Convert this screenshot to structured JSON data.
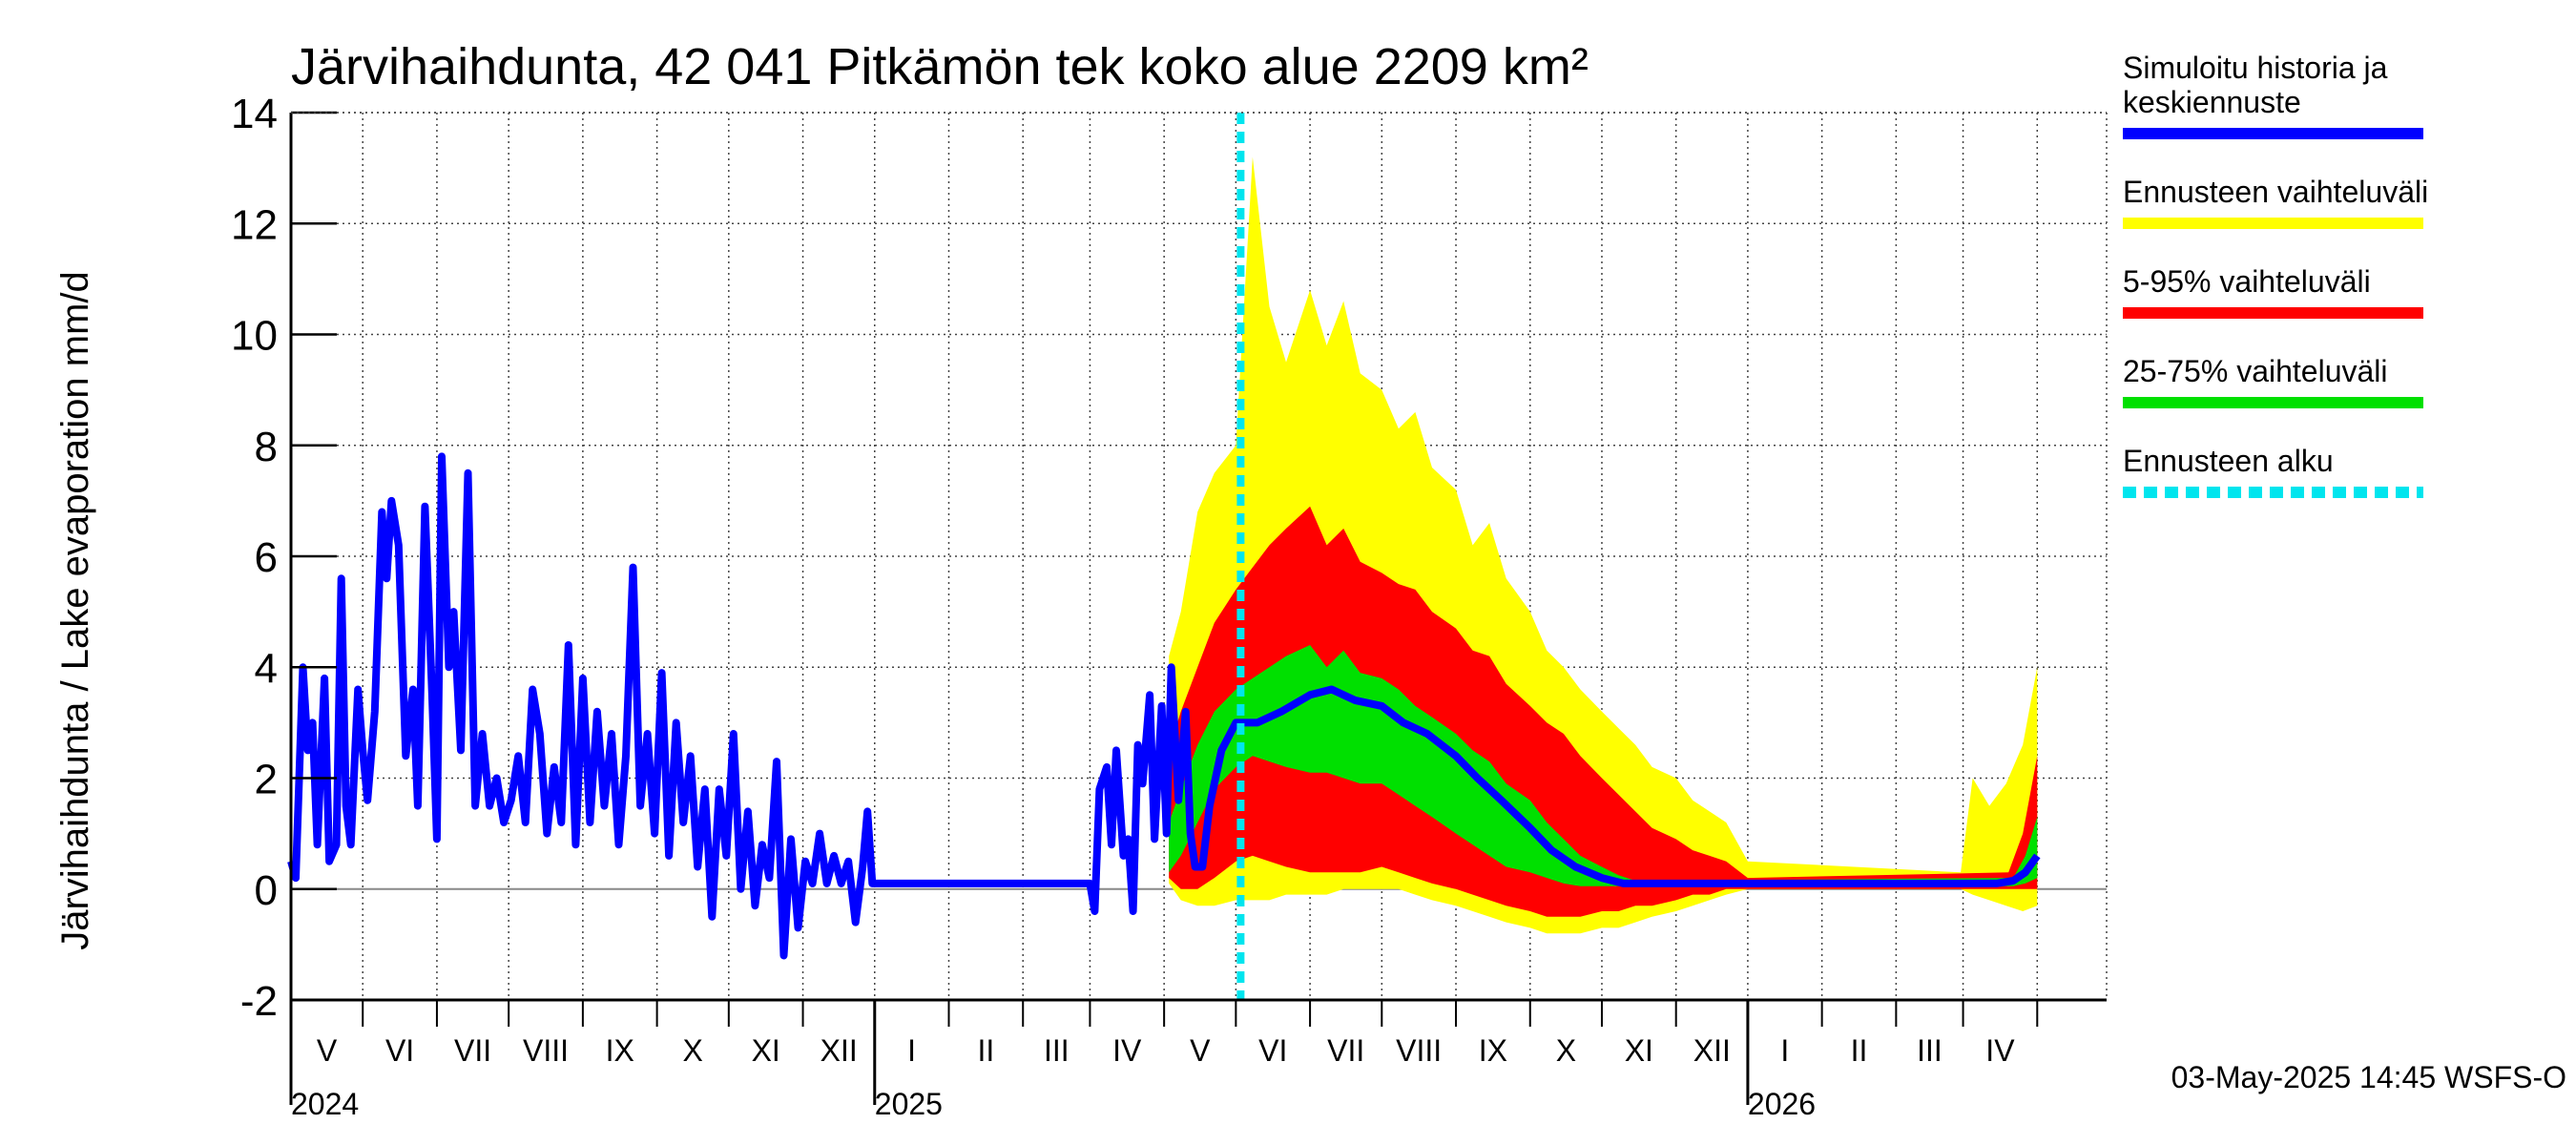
{
  "chart_data": {
    "type": "area",
    "title": "Järvihaihdunta, 42 041 Pitkämön tek koko alue 2209 km²",
    "ylabel": "Järvihaihdunta / Lake evaporation   mm/d",
    "xlabel": "",
    "ylim": [
      -2,
      14
    ],
    "yticks": [
      -2,
      0,
      2,
      4,
      6,
      8,
      10,
      12,
      14
    ],
    "grid": true,
    "legend_position": "right",
    "x_start": "2024-04-01",
    "x_end": "2026-04-30",
    "forecast_start": "2025-05-03",
    "month_ticks": [
      {
        "date": "2024-04-01",
        "label": "V"
      },
      {
        "date": "2024-05-01",
        "label": "VI"
      },
      {
        "date": "2024-06-01",
        "label": "VII"
      },
      {
        "date": "2024-07-01",
        "label": "VIII"
      },
      {
        "date": "2024-08-01",
        "label": "IX"
      },
      {
        "date": "2024-09-01",
        "label": "X"
      },
      {
        "date": "2024-10-01",
        "label": "XI"
      },
      {
        "date": "2024-11-01",
        "label": "XII"
      },
      {
        "date": "2024-12-01",
        "label": "I"
      },
      {
        "date": "2025-01-01",
        "label": "II"
      },
      {
        "date": "2025-02-01",
        "label": "III"
      },
      {
        "date": "2025-03-01",
        "label": "IV"
      },
      {
        "date": "2025-04-01",
        "label": "V"
      },
      {
        "date": "2025-05-01",
        "label": "VI"
      },
      {
        "date": "2025-06-01",
        "label": "VII"
      },
      {
        "date": "2025-07-01",
        "label": "VIII"
      },
      {
        "date": "2025-08-01",
        "label": "IX"
      },
      {
        "date": "2025-09-01",
        "label": "X"
      },
      {
        "date": "2025-10-01",
        "label": "XI"
      },
      {
        "date": "2025-11-01",
        "label": "XII"
      },
      {
        "date": "2025-12-01",
        "label": "I"
      },
      {
        "date": "2026-01-01",
        "label": "II"
      },
      {
        "date": "2026-02-01",
        "label": "III"
      },
      {
        "date": "2026-03-01",
        "label": "IV"
      },
      {
        "date": "2026-04-01",
        "label": ""
      }
    ],
    "year_labels": [
      {
        "date": "2024-04-01",
        "label": "2024"
      },
      {
        "date": "2024-12-01",
        "label": "2025"
      },
      {
        "date": "2025-12-01",
        "label": "2026"
      }
    ],
    "year_boundaries": [
      "2024-12-01",
      "2025-12-01"
    ],
    "legend": [
      {
        "label_lines": [
          "Simuloitu historia ja",
          "keskiennuste"
        ],
        "color": "#0000ff",
        "style": "solid"
      },
      {
        "label_lines": [
          "Ennusteen vaihteluväli"
        ],
        "color": "#ffff00",
        "style": "solid"
      },
      {
        "label_lines": [
          "5-95% vaihteluväli"
        ],
        "color": "#ff0000",
        "style": "solid"
      },
      {
        "label_lines": [
          "25-75% vaihteluväli"
        ],
        "color": "#00e000",
        "style": "solid"
      },
      {
        "label_lines": [
          "Ennusteen alku"
        ],
        "color": "#00e5ee",
        "style": "dashed"
      }
    ],
    "series": [
      {
        "name": "Simuloitu historia ja keskiennuste",
        "color": "#0000ff",
        "points": [
          [
            "2024-04-01",
            0.5
          ],
          [
            "2024-04-03",
            0.2
          ],
          [
            "2024-04-06",
            4.0
          ],
          [
            "2024-04-08",
            2.5
          ],
          [
            "2024-04-10",
            3.0
          ],
          [
            "2024-04-12",
            0.8
          ],
          [
            "2024-04-15",
            3.8
          ],
          [
            "2024-04-17",
            0.5
          ],
          [
            "2024-04-20",
            0.8
          ],
          [
            "2024-04-22",
            5.6
          ],
          [
            "2024-04-24",
            1.5
          ],
          [
            "2024-04-26",
            0.8
          ],
          [
            "2024-04-29",
            3.6
          ],
          [
            "2024-05-01",
            2.5
          ],
          [
            "2024-05-03",
            1.6
          ],
          [
            "2024-05-06",
            3.2
          ],
          [
            "2024-05-09",
            6.8
          ],
          [
            "2024-05-11",
            5.6
          ],
          [
            "2024-05-13",
            7.0
          ],
          [
            "2024-05-16",
            6.2
          ],
          [
            "2024-05-19",
            2.4
          ],
          [
            "2024-05-22",
            3.6
          ],
          [
            "2024-05-24",
            1.5
          ],
          [
            "2024-05-27",
            6.9
          ],
          [
            "2024-05-30",
            3.5
          ],
          [
            "2024-06-01",
            0.9
          ],
          [
            "2024-06-03",
            7.8
          ],
          [
            "2024-06-06",
            4.0
          ],
          [
            "2024-06-08",
            5.0
          ],
          [
            "2024-06-11",
            2.5
          ],
          [
            "2024-06-14",
            7.5
          ],
          [
            "2024-06-17",
            1.5
          ],
          [
            "2024-06-20",
            2.8
          ],
          [
            "2024-06-23",
            1.5
          ],
          [
            "2024-06-26",
            2.0
          ],
          [
            "2024-06-29",
            1.2
          ],
          [
            "2024-07-02",
            1.6
          ],
          [
            "2024-07-05",
            2.4
          ],
          [
            "2024-07-08",
            1.2
          ],
          [
            "2024-07-11",
            3.6
          ],
          [
            "2024-07-14",
            2.8
          ],
          [
            "2024-07-17",
            1.0
          ],
          [
            "2024-07-20",
            2.2
          ],
          [
            "2024-07-23",
            1.2
          ],
          [
            "2024-07-26",
            4.4
          ],
          [
            "2024-07-29",
            0.8
          ],
          [
            "2024-08-01",
            3.8
          ],
          [
            "2024-08-04",
            1.2
          ],
          [
            "2024-08-07",
            3.2
          ],
          [
            "2024-08-10",
            1.5
          ],
          [
            "2024-08-13",
            2.8
          ],
          [
            "2024-08-16",
            0.8
          ],
          [
            "2024-08-19",
            2.4
          ],
          [
            "2024-08-22",
            5.8
          ],
          [
            "2024-08-25",
            1.5
          ],
          [
            "2024-08-28",
            2.8
          ],
          [
            "2024-08-31",
            1.0
          ],
          [
            "2024-09-03",
            3.9
          ],
          [
            "2024-09-06",
            0.6
          ],
          [
            "2024-09-09",
            3.0
          ],
          [
            "2024-09-12",
            1.2
          ],
          [
            "2024-09-15",
            2.4
          ],
          [
            "2024-09-18",
            0.4
          ],
          [
            "2024-09-21",
            1.8
          ],
          [
            "2024-09-24",
            -0.5
          ],
          [
            "2024-09-27",
            1.8
          ],
          [
            "2024-09-30",
            0.6
          ],
          [
            "2024-10-03",
            2.8
          ],
          [
            "2024-10-06",
            0.0
          ],
          [
            "2024-10-09",
            1.4
          ],
          [
            "2024-10-12",
            -0.3
          ],
          [
            "2024-10-15",
            0.8
          ],
          [
            "2024-10-18",
            0.2
          ],
          [
            "2024-10-21",
            2.3
          ],
          [
            "2024-10-24",
            -1.2
          ],
          [
            "2024-10-27",
            0.9
          ],
          [
            "2024-10-30",
            -0.7
          ],
          [
            "2024-11-02",
            0.5
          ],
          [
            "2024-11-05",
            0.1
          ],
          [
            "2024-11-08",
            1.0
          ],
          [
            "2024-11-11",
            0.1
          ],
          [
            "2024-11-14",
            0.6
          ],
          [
            "2024-11-17",
            0.1
          ],
          [
            "2024-11-20",
            0.5
          ],
          [
            "2024-11-23",
            -0.6
          ],
          [
            "2024-11-26",
            0.4
          ],
          [
            "2024-11-28",
            1.4
          ],
          [
            "2024-11-30",
            0.1
          ],
          [
            "2025-03-01",
            0.1
          ],
          [
            "2025-03-03",
            -0.4
          ],
          [
            "2025-03-05",
            1.8
          ],
          [
            "2025-03-08",
            2.2
          ],
          [
            "2025-03-10",
            0.8
          ],
          [
            "2025-03-12",
            2.5
          ],
          [
            "2025-03-15",
            0.6
          ],
          [
            "2025-03-17",
            0.9
          ],
          [
            "2025-03-19",
            -0.4
          ],
          [
            "2025-03-21",
            2.6
          ],
          [
            "2025-03-23",
            1.9
          ],
          [
            "2025-03-26",
            3.5
          ],
          [
            "2025-03-28",
            0.9
          ],
          [
            "2025-03-31",
            3.3
          ],
          [
            "2025-04-02",
            1.0
          ],
          [
            "2025-04-04",
            4.0
          ],
          [
            "2025-04-07",
            1.6
          ],
          [
            "2025-04-10",
            3.2
          ],
          [
            "2025-04-12",
            1.0
          ],
          [
            "2025-04-14",
            0.4
          ],
          [
            "2025-04-17",
            0.4
          ],
          [
            "2025-04-20",
            1.5
          ],
          [
            "2025-04-25",
            2.5
          ],
          [
            "2025-05-01",
            3.0
          ],
          [
            "2025-05-10",
            3.0
          ],
          [
            "2025-05-20",
            3.2
          ],
          [
            "2025-06-01",
            3.5
          ],
          [
            "2025-06-10",
            3.6
          ],
          [
            "2025-06-20",
            3.4
          ],
          [
            "2025-07-01",
            3.3
          ],
          [
            "2025-07-10",
            3.0
          ],
          [
            "2025-07-20",
            2.8
          ],
          [
            "2025-08-01",
            2.4
          ],
          [
            "2025-08-10",
            2.0
          ],
          [
            "2025-08-20",
            1.6
          ],
          [
            "2025-09-01",
            1.1
          ],
          [
            "2025-09-10",
            0.7
          ],
          [
            "2025-09-20",
            0.4
          ],
          [
            "2025-10-01",
            0.2
          ],
          [
            "2025-10-10",
            0.1
          ],
          [
            "2026-03-15",
            0.1
          ],
          [
            "2026-03-22",
            0.15
          ],
          [
            "2026-03-27",
            0.3
          ],
          [
            "2026-04-01",
            0.6
          ]
        ]
      }
    ],
    "bands": [
      {
        "name": "Ennusteen vaihteluväli",
        "color": "#ffff00",
        "x": [
          "2025-04-03",
          "2025-04-08",
          "2025-04-15",
          "2025-04-22",
          "2025-05-01",
          "2025-05-08",
          "2025-05-15",
          "2025-05-22",
          "2025-06-01",
          "2025-06-08",
          "2025-06-15",
          "2025-06-22",
          "2025-07-01",
          "2025-07-08",
          "2025-07-15",
          "2025-07-22",
          "2025-08-01",
          "2025-08-08",
          "2025-08-15",
          "2025-08-22",
          "2025-09-01",
          "2025-09-08",
          "2025-09-15",
          "2025-09-22",
          "2025-10-01",
          "2025-10-08",
          "2025-10-15",
          "2025-10-22",
          "2025-11-01",
          "2025-11-08",
          "2025-11-15",
          "2025-11-22",
          "2025-12-01",
          "2026-02-28",
          "2026-03-05",
          "2026-03-12",
          "2026-03-19",
          "2026-03-26",
          "2026-04-01"
        ],
        "upper": [
          4.2,
          5.0,
          6.8,
          7.5,
          8.0,
          13.2,
          10.5,
          9.5,
          10.8,
          9.8,
          10.6,
          9.3,
          9.0,
          8.3,
          8.6,
          7.6,
          7.2,
          6.2,
          6.6,
          5.6,
          5.0,
          4.3,
          4.0,
          3.6,
          3.2,
          2.9,
          2.6,
          2.2,
          2.0,
          1.6,
          1.4,
          1.2,
          0.5,
          0.3,
          2.0,
          1.5,
          1.9,
          2.6,
          4.0
        ],
        "lower": [
          0.1,
          -0.2,
          -0.3,
          -0.3,
          -0.2,
          -0.2,
          -0.2,
          -0.1,
          -0.1,
          -0.1,
          0.0,
          0.0,
          0.0,
          0.0,
          -0.1,
          -0.2,
          -0.3,
          -0.4,
          -0.5,
          -0.6,
          -0.7,
          -0.8,
          -0.8,
          -0.8,
          -0.7,
          -0.7,
          -0.6,
          -0.5,
          -0.4,
          -0.3,
          -0.2,
          -0.1,
          0.0,
          0.0,
          -0.1,
          -0.2,
          -0.3,
          -0.4,
          -0.3
        ]
      },
      {
        "name": "5-95% vaihteluväli",
        "color": "#ff0000",
        "x": [
          "2025-04-03",
          "2025-04-08",
          "2025-04-15",
          "2025-04-22",
          "2025-05-01",
          "2025-05-08",
          "2025-05-15",
          "2025-05-22",
          "2025-06-01",
          "2025-06-08",
          "2025-06-15",
          "2025-06-22",
          "2025-07-01",
          "2025-07-08",
          "2025-07-15",
          "2025-07-22",
          "2025-08-01",
          "2025-08-08",
          "2025-08-15",
          "2025-08-22",
          "2025-09-01",
          "2025-09-08",
          "2025-09-15",
          "2025-09-22",
          "2025-10-01",
          "2025-10-08",
          "2025-10-15",
          "2025-10-22",
          "2025-11-01",
          "2025-11-08",
          "2025-11-15",
          "2025-11-22",
          "2025-12-01",
          "2026-03-20",
          "2026-03-26",
          "2026-04-01"
        ],
        "upper": [
          2.5,
          3.2,
          4.0,
          4.8,
          5.4,
          5.8,
          6.2,
          6.5,
          6.9,
          6.2,
          6.5,
          5.9,
          5.7,
          5.5,
          5.4,
          5.0,
          4.7,
          4.3,
          4.2,
          3.7,
          3.3,
          3.0,
          2.8,
          2.4,
          2.0,
          1.7,
          1.4,
          1.1,
          0.9,
          0.7,
          0.6,
          0.5,
          0.2,
          0.3,
          1.0,
          2.4
        ],
        "lower": [
          0.2,
          0.0,
          0.0,
          0.2,
          0.5,
          0.6,
          0.5,
          0.4,
          0.3,
          0.3,
          0.3,
          0.3,
          0.4,
          0.3,
          0.2,
          0.1,
          0.0,
          -0.1,
          -0.2,
          -0.3,
          -0.4,
          -0.5,
          -0.5,
          -0.5,
          -0.4,
          -0.4,
          -0.3,
          -0.3,
          -0.2,
          -0.1,
          -0.1,
          0.0,
          0.0,
          0.0,
          0.0,
          0.0
        ]
      },
      {
        "name": "25-75% vaihteluväli",
        "color": "#00e000",
        "x": [
          "2025-04-03",
          "2025-04-08",
          "2025-04-15",
          "2025-04-22",
          "2025-05-01",
          "2025-05-08",
          "2025-05-15",
          "2025-05-22",
          "2025-06-01",
          "2025-06-08",
          "2025-06-15",
          "2025-06-22",
          "2025-07-01",
          "2025-07-08",
          "2025-07-15",
          "2025-07-22",
          "2025-08-01",
          "2025-08-08",
          "2025-08-15",
          "2025-08-22",
          "2025-09-01",
          "2025-09-08",
          "2025-09-15",
          "2025-09-22",
          "2025-10-01",
          "2025-10-08",
          "2025-10-15",
          "2026-03-22",
          "2026-03-27",
          "2026-04-01"
        ],
        "upper": [
          1.2,
          1.8,
          2.6,
          3.2,
          3.6,
          3.8,
          4.0,
          4.2,
          4.4,
          4.0,
          4.3,
          3.9,
          3.8,
          3.6,
          3.3,
          3.1,
          2.8,
          2.5,
          2.3,
          1.9,
          1.6,
          1.2,
          0.9,
          0.6,
          0.4,
          0.25,
          0.15,
          0.2,
          0.6,
          1.3
        ],
        "lower": [
          0.3,
          0.6,
          1.2,
          1.8,
          2.2,
          2.4,
          2.3,
          2.2,
          2.1,
          2.1,
          2.0,
          1.9,
          1.9,
          1.7,
          1.5,
          1.3,
          1.0,
          0.8,
          0.6,
          0.4,
          0.3,
          0.2,
          0.1,
          0.05,
          0.05,
          0.05,
          0.05,
          0.05,
          0.1,
          0.2
        ]
      }
    ]
  },
  "timestamp": "03-May-2025 14:45 WSFS-O"
}
